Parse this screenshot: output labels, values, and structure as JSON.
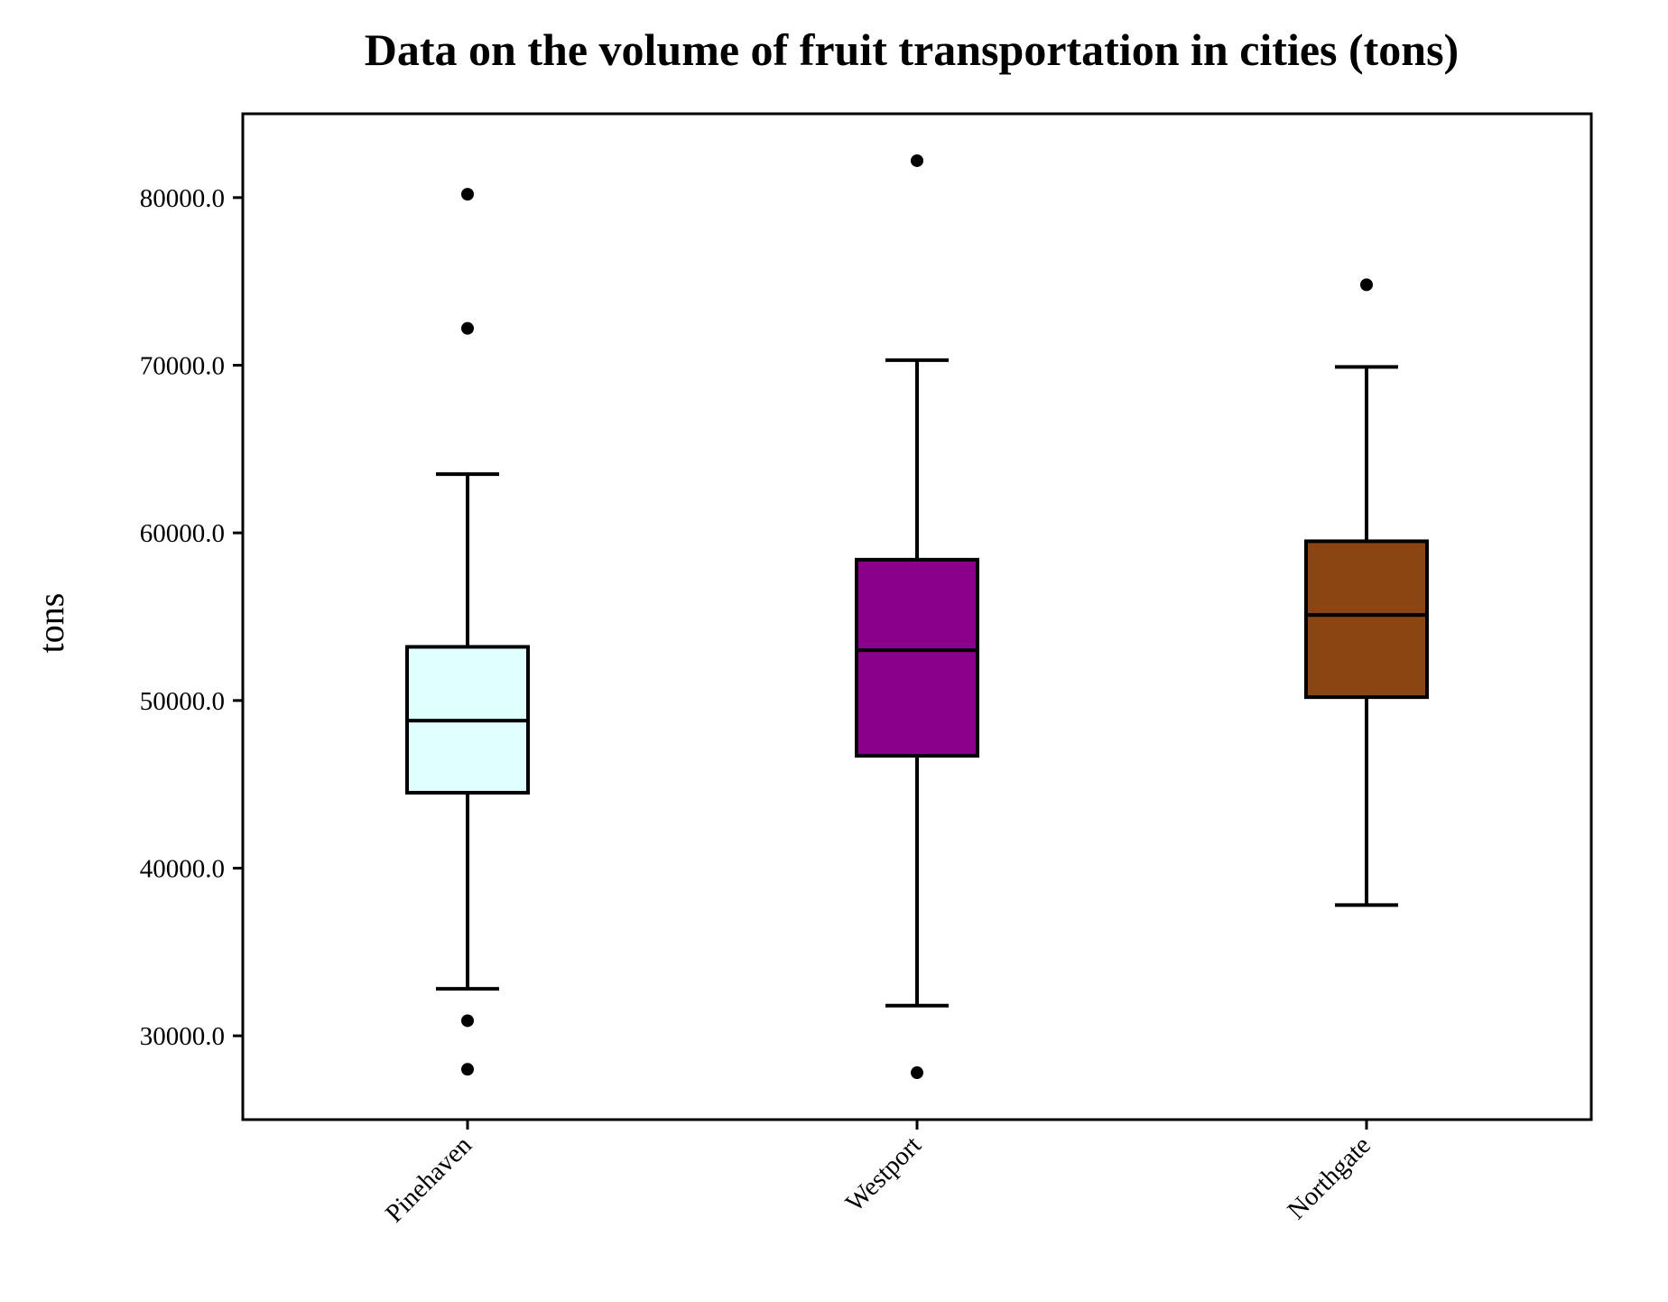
{
  "chart_data": {
    "type": "box",
    "title": "Data on the volume of fruit transportation in cities (tons)",
    "xlabel": "",
    "ylabel": "tons",
    "ylim": [
      25000,
      85000
    ],
    "yticks": [
      30000,
      40000,
      50000,
      60000,
      70000,
      80000
    ],
    "ytick_labels": [
      "30000.0",
      "40000.0",
      "50000.0",
      "60000.0",
      "70000.0",
      "80000.0"
    ],
    "grid": false,
    "legend": "none",
    "categories": [
      "Pinehaven",
      "Westport",
      "Northgate"
    ],
    "boxes": [
      {
        "name": "Pinehaven",
        "color": "#E0FFFF",
        "whisker_low": 32800,
        "q1": 44500,
        "median": 48800,
        "q3": 53200,
        "whisker_high": 63500,
        "outliers": [
          80200,
          72200,
          30900,
          28000
        ]
      },
      {
        "name": "Westport",
        "color": "#8B008B",
        "whisker_low": 31800,
        "q1": 46700,
        "median": 53000,
        "q3": 58400,
        "whisker_high": 70300,
        "outliers": [
          82200,
          27800
        ]
      },
      {
        "name": "Northgate",
        "color": "#8B4513",
        "whisker_low": 37800,
        "q1": 50200,
        "median": 55100,
        "q3": 59500,
        "whisker_high": 69900,
        "outliers": [
          74800
        ]
      }
    ]
  }
}
